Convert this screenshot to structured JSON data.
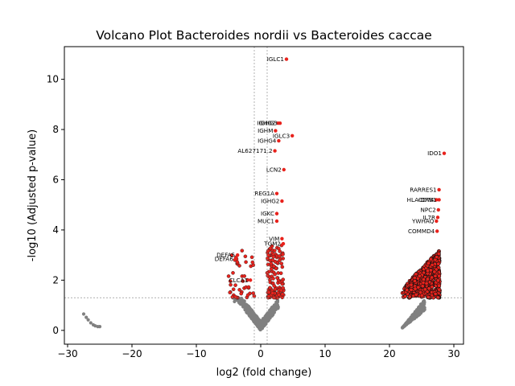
{
  "chart_data": {
    "type": "scatter",
    "title": "Volcano Plot Bacteroides nordii vs Bacteroides caccae",
    "xlabel": "log2 (fold change)",
    "ylabel": "-log10 (Adjusted p-value)",
    "xlim": [
      -30.5,
      31.5
    ],
    "ylim": [
      -0.55,
      11.3
    ],
    "xticks": [
      -30,
      -20,
      -10,
      0,
      10,
      20,
      30
    ],
    "yticks": [
      0,
      2,
      4,
      6,
      8,
      10
    ],
    "grid": false,
    "thresholds": {
      "log2fc": [
        -1,
        1
      ],
      "neg_log10_padj": 1.3
    },
    "colors": {
      "significant": "#e8221c",
      "nonsignificant": "#808080",
      "threshold_line": "#808080"
    },
    "labeled_points": [
      {
        "gene": "IGLC1",
        "x": 4.0,
        "y": 10.8
      },
      {
        "gene": "IGHG2",
        "x": 2.7,
        "y": 8.25
      },
      {
        "gene": "IGHG3",
        "x": 3.0,
        "y": 8.25
      },
      {
        "gene": "IGHM",
        "x": 2.3,
        "y": 7.95
      },
      {
        "gene": "IGLC3",
        "x": 4.9,
        "y": 7.75
      },
      {
        "gene": "IGHG4",
        "x": 2.8,
        "y": 7.55
      },
      {
        "gene": "AL627171.2",
        "x": 2.2,
        "y": 7.15
      },
      {
        "gene": "LCN2",
        "x": 3.6,
        "y": 6.4
      },
      {
        "gene": "REG1A",
        "x": 2.5,
        "y": 5.45
      },
      {
        "gene": "IGHG2",
        "x": 3.3,
        "y": 5.15
      },
      {
        "gene": "IGKC",
        "x": 2.5,
        "y": 4.65
      },
      {
        "gene": "MUC1",
        "x": 2.5,
        "y": 4.35
      },
      {
        "gene": "VIM",
        "x": 3.3,
        "y": 3.65
      },
      {
        "gene": "TGM2",
        "x": 3.5,
        "y": 3.45
      },
      {
        "gene": "DEFA5",
        "x": -3.6,
        "y": 3.0
      },
      {
        "gene": "DEFA6",
        "x": -3.9,
        "y": 2.85
      },
      {
        "gene": "CLCA1",
        "x": -1.6,
        "y": 2.0
      },
      {
        "gene": "IDO1",
        "x": 28.5,
        "y": 7.05
      },
      {
        "gene": "RARRES1",
        "x": 27.7,
        "y": 5.6
      },
      {
        "gene": "CD74",
        "x": 27.3,
        "y": 5.2
      },
      {
        "gene": "HLA-DRB1",
        "x": 27.7,
        "y": 5.2
      },
      {
        "gene": "NPC2",
        "x": 27.6,
        "y": 4.8
      },
      {
        "gene": "IL7R",
        "x": 27.5,
        "y": 4.5
      },
      {
        "gene": "YWHAQ",
        "x": 27.3,
        "y": 4.35
      },
      {
        "gene": "COMMD4",
        "x": 27.4,
        "y": 3.95
      }
    ],
    "sig_right_cluster": {
      "x_range": [
        22.0,
        27.8
      ],
      "y_range": [
        1.3,
        3.8
      ]
    },
    "sig_left_cluster": {
      "x_range": [
        -5.0,
        -1.0
      ],
      "y_range": [
        1.3,
        3.2
      ]
    },
    "sig_center_cluster": {
      "x_range": [
        1.0,
        3.6
      ],
      "y_range": [
        1.3,
        3.4
      ]
    },
    "nonsig_center": {
      "x_range": [
        -4.5,
        3.0
      ],
      "y_range": [
        0.0,
        1.3
      ]
    },
    "nonsig_right": {
      "x_range": [
        22.0,
        25.5
      ],
      "y_range": [
        0.1,
        1.3
      ]
    },
    "nonsig_left_tail": [
      {
        "x": -27.5,
        "y": 0.65
      },
      {
        "x": -27.1,
        "y": 0.52
      },
      {
        "x": -26.8,
        "y": 0.42
      },
      {
        "x": -26.4,
        "y": 0.3
      },
      {
        "x": -26.0,
        "y": 0.22
      },
      {
        "x": -25.7,
        "y": 0.18
      },
      {
        "x": -25.3,
        "y": 0.15
      },
      {
        "x": -25.0,
        "y": 0.15
      }
    ]
  }
}
